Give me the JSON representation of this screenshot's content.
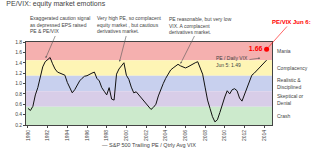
{
  "chart_data": {
    "type": "line",
    "title": "PE/VIX: equity market emotions",
    "xlabel": "— S&P 500 Trailing PE / Qtrly Avg VIX",
    "x": [
      1990.0,
      1990.25,
      1990.5,
      1990.75,
      1991.0,
      1991.25,
      1991.5,
      1991.75,
      1992.0,
      1992.25,
      1992.5,
      1992.75,
      1993.0,
      1993.25,
      1993.5,
      1993.75,
      1994.0,
      1994.25,
      1994.5,
      1994.75,
      1995.0,
      1995.25,
      1995.5,
      1995.75,
      1996.0,
      1996.25,
      1996.5,
      1996.75,
      1997.0,
      1997.25,
      1997.5,
      1997.75,
      1998.0,
      1998.25,
      1998.5,
      1998.75,
      1999.0,
      1999.25,
      1999.5,
      1999.75,
      2000.0,
      2000.25,
      2000.5,
      2000.75,
      2001.0,
      2001.25,
      2001.5,
      2001.75,
      2002.0,
      2002.25,
      2002.5,
      2002.75,
      2003.0,
      2003.25,
      2003.5,
      2003.75,
      2004.0,
      2004.25,
      2004.5,
      2004.75,
      2005.0,
      2005.25,
      2005.5,
      2005.75,
      2006.0,
      2006.25,
      2006.5,
      2006.75,
      2007.0,
      2007.25,
      2007.5,
      2007.75,
      2008.0,
      2008.25,
      2008.5,
      2008.75,
      2009.0,
      2009.25,
      2009.5,
      2009.75,
      2010.0,
      2010.25,
      2010.5,
      2010.75,
      2011.0,
      2011.25,
      2011.5,
      2011.75,
      2012.0,
      2012.25,
      2012.5,
      2012.75,
      2013.0,
      2013.25,
      2013.5,
      2013.75,
      2014.0,
      2014.25
    ],
    "series": [
      {
        "color": "#111111",
        "values": [
          0.52,
          0.48,
          0.56,
          0.78,
          0.92,
          1.12,
          1.32,
          1.42,
          1.46,
          1.5,
          1.38,
          1.28,
          1.22,
          1.2,
          1.18,
          1.16,
          1.02,
          0.92,
          0.82,
          0.88,
          0.98,
          1.05,
          1.1,
          1.14,
          1.15,
          1.18,
          1.2,
          1.22,
          1.1,
          1.05,
          0.92,
          0.85,
          0.78,
          0.92,
          0.7,
          0.68,
          1.18,
          1.28,
          1.35,
          1.4,
          1.16,
          1.08,
          0.93,
          0.82,
          0.84,
          0.78,
          0.73,
          0.68,
          0.62,
          0.56,
          0.5,
          0.54,
          0.6,
          0.76,
          0.9,
          1.0,
          1.1,
          1.18,
          1.26,
          1.3,
          1.34,
          1.37,
          1.34,
          1.32,
          1.3,
          1.32,
          1.35,
          1.38,
          1.4,
          1.42,
          1.28,
          1.18,
          0.93,
          0.68,
          0.52,
          0.36,
          0.26,
          0.3,
          0.44,
          0.6,
          0.74,
          0.86,
          0.8,
          0.88,
          0.9,
          0.86,
          0.72,
          0.66,
          0.78,
          0.92,
          1.05,
          1.16,
          1.2,
          1.25,
          1.3,
          1.35,
          1.38,
          1.45
        ]
      },
      {
        "type": "scatter",
        "marker": "circle",
        "color": "red",
        "x": [
          2014.25
        ],
        "values": [
          1.66
        ],
        "data_labels": true
      }
    ],
    "xlim": [
      1989.8,
      2014.8
    ],
    "xticks": [
      1990,
      1992,
      1994,
      1996,
      1998,
      2000,
      2002,
      2004,
      2006,
      2008,
      2010,
      2012,
      2014
    ],
    "ylim": [
      0.2,
      1.8
    ],
    "yticks": [
      0.2,
      0.4,
      0.6,
      0.8,
      {
        "value": 1.0,
        "label": "1.0"
      },
      1.2,
      1.4,
      1.6,
      1.8
    ],
    "grid": false,
    "bands": [
      {
        "from": 1.45,
        "to": 1.8,
        "color": "#f5b0af",
        "label": "Mania"
      },
      {
        "from": 1.15,
        "to": 1.45,
        "color": "#fef5b5",
        "label": "Complacency"
      },
      {
        "from": 0.85,
        "to": 1.15,
        "color": "#c8d0ee",
        "label": "Realistic &\nDisciplined"
      },
      {
        "from": 0.55,
        "to": 0.85,
        "color": "#d8cde8",
        "label": "Skeptical or\nDenial"
      },
      {
        "from": 0.2,
        "to": 0.55,
        "color": "#cceacc",
        "label": "Crash"
      }
    ],
    "annotations": [
      {
        "text": "Exaggerated caution signal\nas depressed EPS raised\nPE & PE/VIX",
        "x": 1991.8,
        "y": 1.49
      },
      {
        "text": "Very high PE, so complacent\nequity market , but cautious\nderivatives market.",
        "x": 1999.3,
        "y": 1.42
      },
      {
        "text": "PE reasonable, but very low\nVIX. A complacent\nderivatives market.",
        "x": 2005.5,
        "y": 1.38
      },
      {
        "text": "PE / Daily VIX\nJun 5: 1.49",
        "x": 2013.6,
        "y": 1.49
      },
      {
        "text": "PE/VIX Jun 6:",
        "x": 2014.25,
        "y": 1.66,
        "color": "red"
      }
    ]
  }
}
